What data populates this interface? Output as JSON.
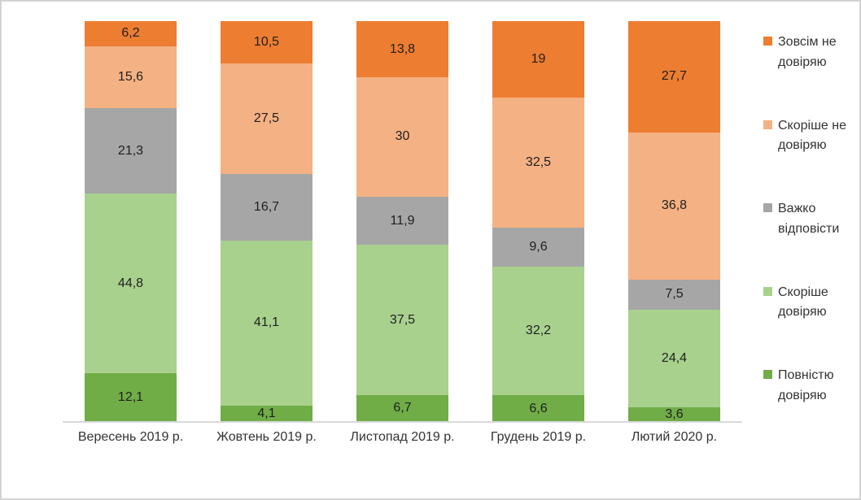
{
  "chart_data": {
    "type": "bar",
    "stacked": true,
    "orientation": "vertical",
    "title": "",
    "xlabel": "",
    "ylabel": "",
    "ylim": [
      0,
      100
    ],
    "grid": false,
    "value_format": "comma-decimal",
    "categories": [
      "Вересень 2019 р.",
      "Жовтень 2019 р.",
      "Листопад 2019 р.",
      "Грудень 2019 р.",
      "Лютий 2020 р."
    ],
    "series": [
      {
        "name": "Повністю довіряю",
        "color": "#70AD47",
        "values": [
          12.1,
          4.1,
          6.7,
          6.6,
          3.6
        ],
        "labels": [
          "12,1",
          "4,1",
          "6,7",
          "6,6",
          "3,6"
        ]
      },
      {
        "name": "Скоріше довіряю",
        "color": "#A9D18E",
        "values": [
          44.8,
          41.1,
          37.5,
          32.2,
          24.4
        ],
        "labels": [
          "44,8",
          "41,1",
          "37,5",
          "32,2",
          "24,4"
        ]
      },
      {
        "name": "Важко відповісти",
        "color": "#A6A6A6",
        "values": [
          21.3,
          16.7,
          11.9,
          9.6,
          7.5
        ],
        "labels": [
          "21,3",
          "16,7",
          "11,9",
          "9,6",
          "7,5"
        ]
      },
      {
        "name": "Скоріше не довіряю",
        "color": "#F4B183",
        "values": [
          15.6,
          27.5,
          30,
          32.5,
          36.8
        ],
        "labels": [
          "15,6",
          "27,5",
          "30",
          "32,5",
          "36,8"
        ]
      },
      {
        "name": "Зовсім не довіряю",
        "color": "#ED7D31",
        "values": [
          6.2,
          10.5,
          13.8,
          19,
          27.7
        ],
        "labels": [
          "6,2",
          "10,5",
          "13,8",
          "19",
          "27,7"
        ]
      }
    ],
    "legend": {
      "position": "right",
      "entries": [
        {
          "label": "Зовсім не довіряю",
          "color": "#ED7D31"
        },
        {
          "label": "Скоріше  не довіряю",
          "color": "#F4B183"
        },
        {
          "label": "Важко відповісти",
          "color": "#A6A6A6"
        },
        {
          "label": "Скоріше довіряю",
          "color": "#A9D18E"
        },
        {
          "label": "Повністю довіряю",
          "color": "#70AD47"
        }
      ]
    }
  },
  "colors": {
    "background": "#FFFFFF",
    "border": "#D3D3D3",
    "axis_line": "#D9D9D9",
    "data_label_text": "#1F1F1F",
    "category_label_text": "#333333",
    "legend_text": "#333333"
  }
}
